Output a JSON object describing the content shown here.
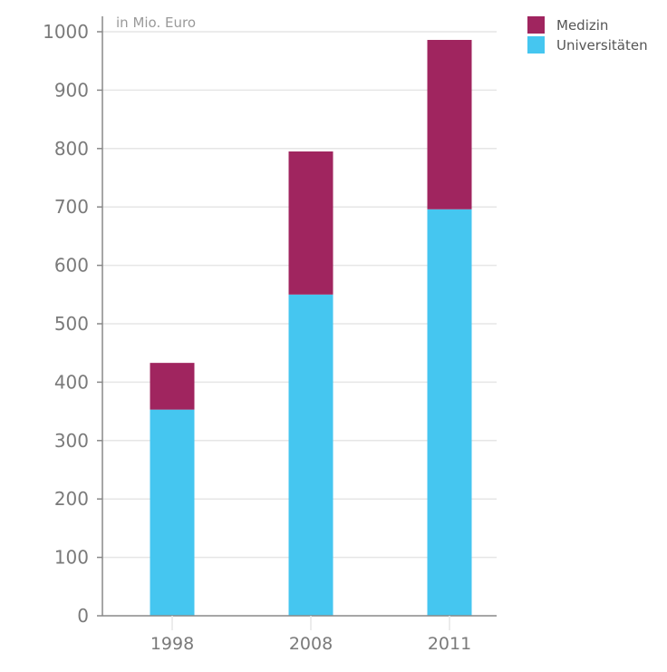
{
  "chart_data": {
    "type": "bar",
    "stacked": true,
    "unit_label": "in Mio. Euro",
    "categories": [
      "1998",
      "2008",
      "2011"
    ],
    "series": [
      {
        "name": "Universitäten",
        "color": "#45c6f0",
        "values": [
          353,
          550,
          696
        ]
      },
      {
        "name": "Medizin",
        "color": "#a0255f",
        "values": [
          80,
          245,
          290
        ]
      }
    ],
    "ylim": [
      0,
      1000
    ],
    "yticks": [
      0,
      100,
      200,
      300,
      400,
      500,
      600,
      700,
      800,
      900,
      1000
    ],
    "grid": true,
    "legend": {
      "position": "top-right",
      "order": [
        "Medizin",
        "Universitäten"
      ]
    }
  }
}
